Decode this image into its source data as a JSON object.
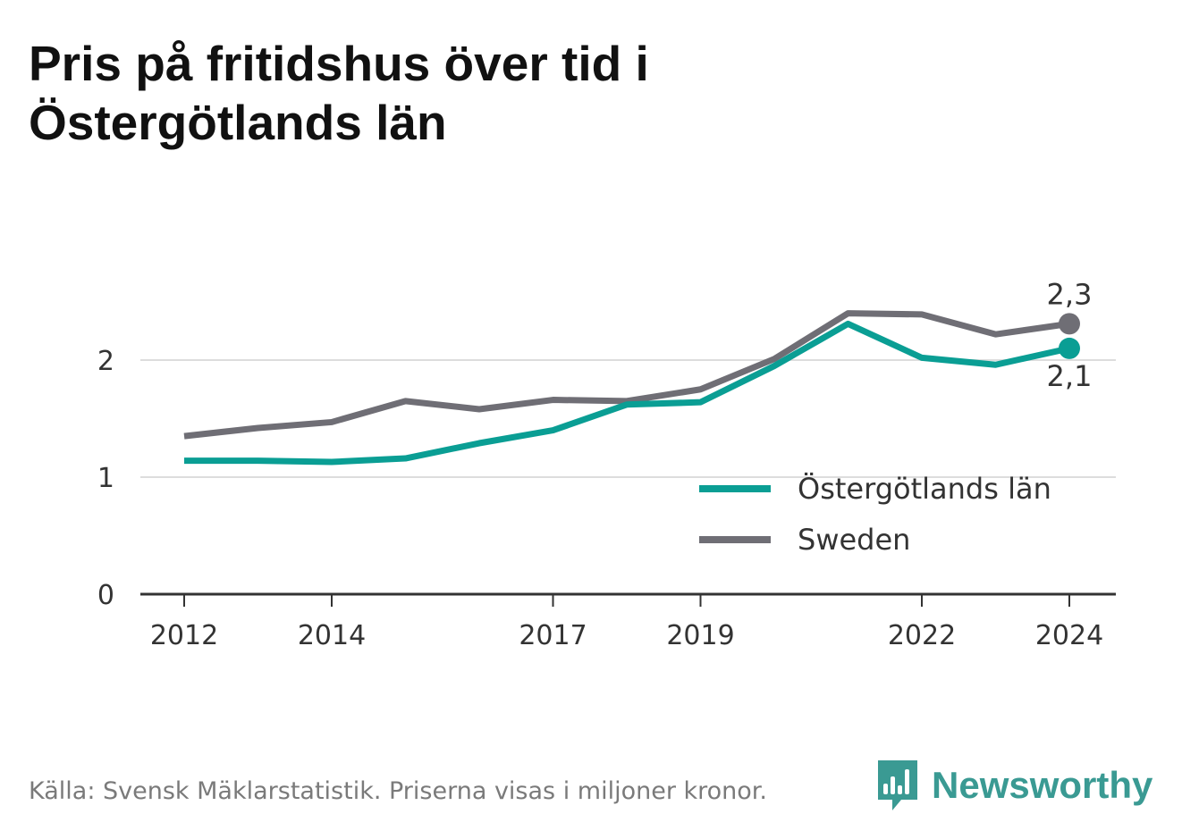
{
  "title": "Pris på fritidshus över tid i Östergötlands län",
  "footer": {
    "source": "Källa: Svensk Mäklarstatistik. Priserna visas i miljoner kronor.",
    "brand": "Newsworthy"
  },
  "colors": {
    "region": "#0a9e94",
    "sweden": "#6f6e75",
    "grid": "#dddddd",
    "axis": "#333333",
    "brand": "#3a9a93"
  },
  "chart_data": {
    "type": "line",
    "x": [
      2012,
      2013,
      2014,
      2015,
      2016,
      2017,
      2018,
      2019,
      2020,
      2021,
      2022,
      2023,
      2024
    ],
    "x_ticks": [
      "2012",
      "2014",
      "2017",
      "2019",
      "2022",
      "2024"
    ],
    "y_ticks": [
      "0",
      "1",
      "2"
    ],
    "ylim": [
      0,
      2.5
    ],
    "grid": true,
    "legend_position": "bottom-right",
    "series": [
      {
        "name": "Östergötlands län",
        "color": "#0a9e94",
        "values": [
          1.14,
          1.14,
          1.13,
          1.16,
          1.29,
          1.4,
          1.62,
          1.64,
          1.95,
          2.31,
          2.02,
          1.96,
          2.1
        ],
        "end_label": "2,1"
      },
      {
        "name": "Sweden",
        "color": "#6f6e75",
        "values": [
          1.35,
          1.42,
          1.47,
          1.65,
          1.58,
          1.66,
          1.65,
          1.75,
          2.01,
          2.4,
          2.39,
          2.22,
          2.31
        ],
        "end_label": "2,3"
      }
    ]
  }
}
